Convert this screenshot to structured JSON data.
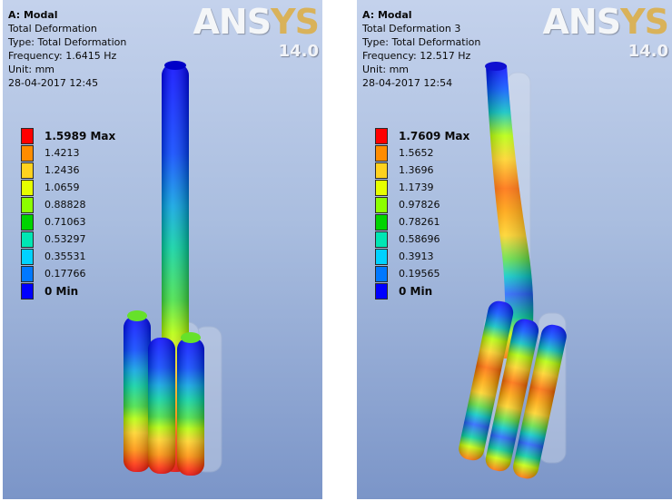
{
  "panels": [
    {
      "title": "A: Modal",
      "result": "Total Deformation",
      "type": "Type: Total Deformation",
      "frequency": "Frequency: 1.6415 Hz",
      "unit": "Unit: mm",
      "timestamp": "28-04-2017 12:45",
      "logo_brand_a": "ANS",
      "logo_brand_b": "YS",
      "logo_version": "14.0",
      "legend": [
        "1.5989 Max",
        "1.4213",
        "1.2436",
        "1.0659",
        "0.88828",
        "0.71063",
        "0.53297",
        "0.35531",
        "0.17766",
        "0 Min"
      ]
    },
    {
      "title": "A: Modal",
      "result": "Total Deformation 3",
      "type": "Type: Total Deformation",
      "frequency": "Frequency: 12.517 Hz",
      "unit": "Unit: mm",
      "timestamp": "28-04-2017 12:54",
      "logo_brand_a": "ANS",
      "logo_brand_b": "YS",
      "logo_version": "14.0",
      "legend": [
        "1.7609 Max",
        "1.5652",
        "1.3696",
        "1.1739",
        "0.97826",
        "0.78261",
        "0.58696",
        "0.3913",
        "0.19565",
        "0 Min"
      ]
    }
  ],
  "legend_colors": [
    "#ff0000",
    "#ff8c00",
    "#ffd21e",
    "#e6ff00",
    "#8cff00",
    "#00d400",
    "#00e6b4",
    "#00d2ff",
    "#0078ff",
    "#0000ff"
  ]
}
